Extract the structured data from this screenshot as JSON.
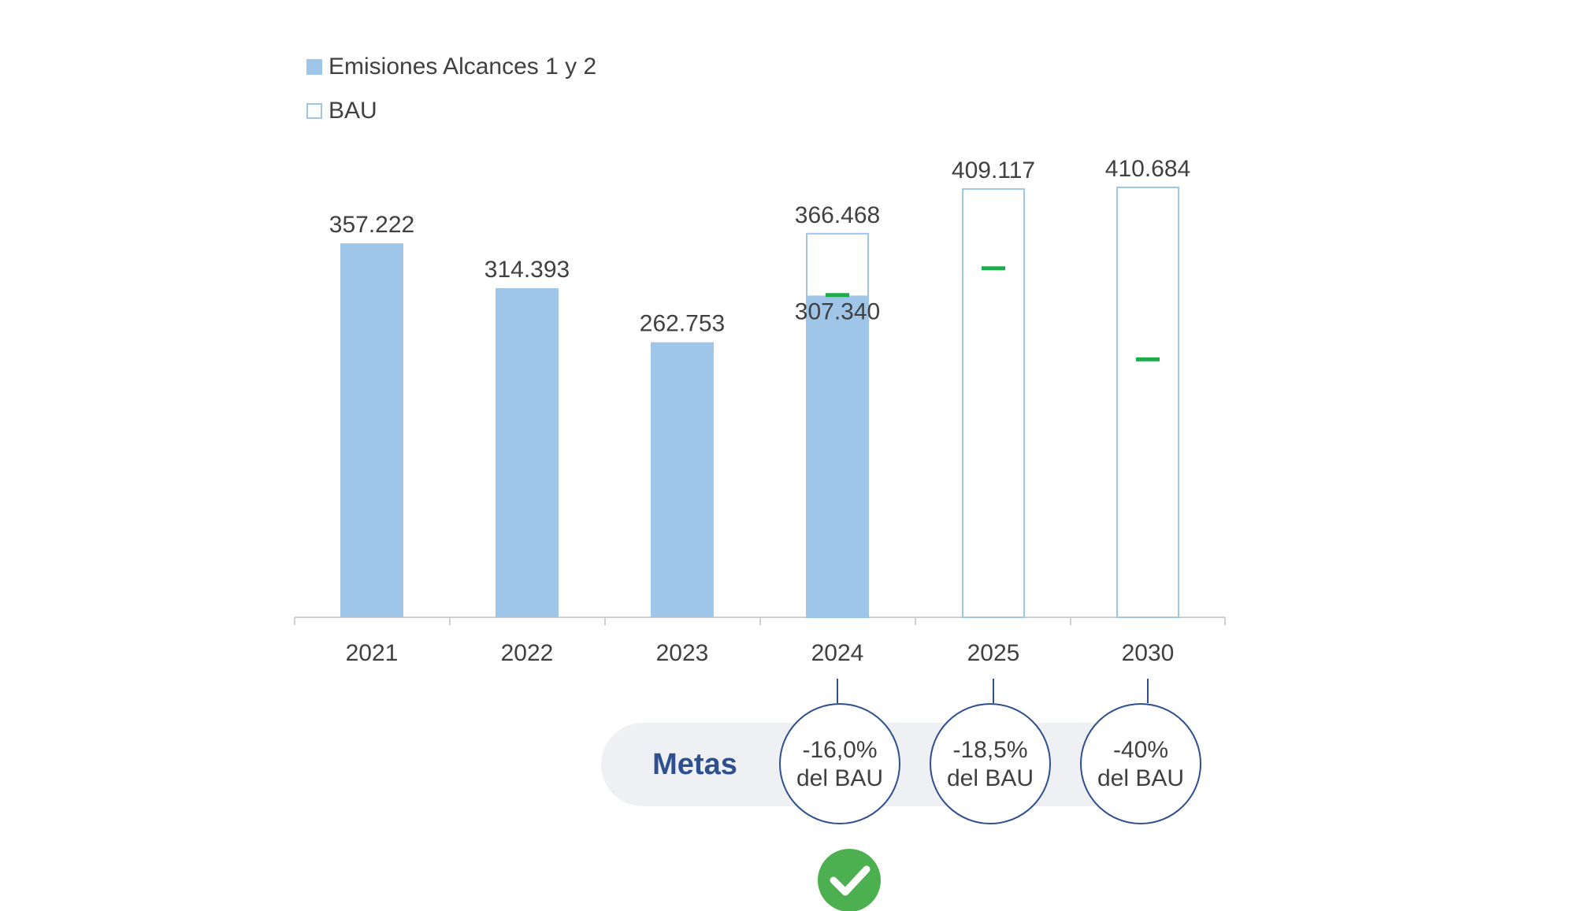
{
  "colors": {
    "emissions": "#9fc5e8",
    "bau_outline": "#9fc5e8",
    "target_marker": "#1faa4b",
    "axis": "#d0d0d0",
    "label_text": "#404040",
    "metas_text": "#2f4f8f",
    "metas_pill": "#eef0f3",
    "circle_border": "#2f4f8f",
    "check_circle": "#4caf50"
  },
  "legend": {
    "emissions_label": "Emisiones Alcances 1 y 2",
    "bau_label": "BAU"
  },
  "chart_data": {
    "type": "bar",
    "categories": [
      "2021",
      "2022",
      "2023",
      "2024",
      "2025",
      "2030"
    ],
    "series": [
      {
        "name": "Emisiones Alcances 1 y 2",
        "values": [
          357222,
          314393,
          262753,
          307340,
          null,
          null
        ],
        "labels": [
          "357.222",
          "314.393",
          "262.753",
          "307.340",
          "",
          ""
        ]
      },
      {
        "name": "BAU",
        "values": [
          null,
          null,
          null,
          366468,
          409117,
          410684
        ],
        "labels": [
          "",
          "",
          "",
          "366.468",
          "409.117",
          "410.684"
        ]
      }
    ],
    "target_markers": [
      null,
      null,
      null,
      307833,
      333430,
      246410
    ],
    "ylim": [
      0,
      410684
    ],
    "title": "",
    "xlabel": "",
    "ylabel": "",
    "legend_position": "top-left",
    "grid": false
  },
  "metas": {
    "label": "Metas",
    "targets": [
      {
        "year": "2024",
        "line1": "-16,0%",
        "line2": "del BAU",
        "achieved": true
      },
      {
        "year": "2025",
        "line1": "-18,5%",
        "line2": "del BAU",
        "achieved": false
      },
      {
        "year": "2030",
        "line1": "-40%",
        "line2": "del BAU",
        "achieved": false
      }
    ]
  }
}
